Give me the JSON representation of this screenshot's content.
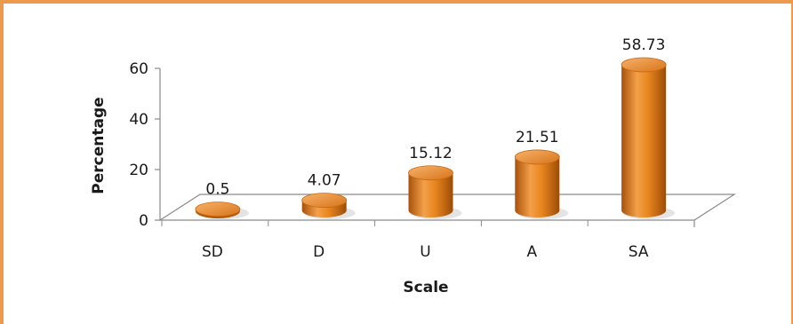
{
  "chart_data": {
    "type": "bar",
    "style": "3d-cylinder",
    "categories": [
      "SD",
      "D",
      "U",
      "A",
      "SA"
    ],
    "values": [
      0.5,
      4.07,
      15.12,
      21.51,
      58.73
    ],
    "data_labels": [
      "0.5",
      "4.07",
      "15.12",
      "21.51",
      "58.73"
    ],
    "xlabel": "Scale",
    "ylabel": "Percentage",
    "ylim": [
      0,
      60
    ],
    "yticks": [
      0,
      20,
      40,
      60
    ],
    "ytick_labels": [
      "0",
      "20",
      "40",
      "60"
    ],
    "grid": false,
    "legend": "none",
    "colors": {
      "bar": "#e8861e",
      "bar_dark": "#b05a0c",
      "bar_light": "#f7b26a",
      "frame": "#ee9a4d"
    }
  }
}
